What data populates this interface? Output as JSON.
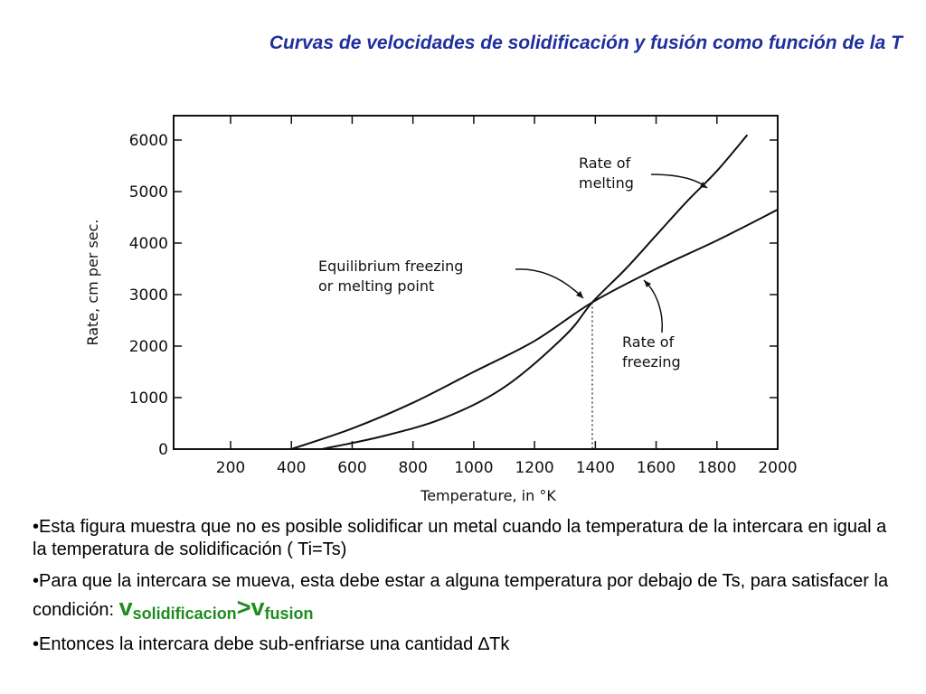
{
  "slide": {
    "title": "Curvas de velocidades de solidificación y fusión como función de la T"
  },
  "chart_data": {
    "type": "line",
    "xlabel": "Temperature, in °K",
    "ylabel": "Rate, cm per sec.",
    "xlim": [
      0,
      2000
    ],
    "ylim": [
      0,
      6500
    ],
    "xticks": [
      "200",
      "400",
      "600",
      "800",
      "1000",
      "1200",
      "1400",
      "1600",
      "1800",
      "2000"
    ],
    "yticks": [
      "0",
      "1000",
      "2000",
      "3000",
      "4000",
      "5000",
      "6000"
    ],
    "grid": false,
    "series": [
      {
        "name": "Rate of melting",
        "x": [
          500,
          700,
          900,
          1100,
          1300,
          1390,
          1500,
          1600,
          1700,
          1800,
          1900
        ],
        "y": [
          0,
          250,
          600,
          1200,
          2200,
          2850,
          3500,
          4150,
          4800,
          5400,
          6100
        ]
      },
      {
        "name": "Rate of freezing",
        "x": [
          400,
          600,
          800,
          1000,
          1200,
          1390,
          1600,
          1800,
          2000
        ],
        "y": [
          0,
          400,
          900,
          1500,
          2100,
          2850,
          3500,
          4050,
          4650
        ]
      }
    ],
    "equilibrium_x": 1390,
    "annotations": {
      "melting": [
        "Rate of",
        "melting"
      ],
      "equilibrium": [
        "Equilibrium freezing",
        "or melting point"
      ],
      "freezing": [
        "Rate of",
        "freezing"
      ]
    }
  },
  "bullets": {
    "b1": "•Esta figura muestra que no es posible solidificar  un metal cuando la temperatura de la intercara en igual a la temperatura de solidificación ( Ti=Ts)",
    "b2_text": "•Para que la intercara se mueva, esta debe estar a alguna temperatura por debajo de Ts, para satisfacer la condición: ",
    "v_symbol": "v",
    "sub_solid": "solidificacion",
    "gt": ">",
    "sub_fusion": "fusion",
    "b3": "•Entonces la intercara debe sub-enfriarse una cantidad ∆Tk"
  }
}
